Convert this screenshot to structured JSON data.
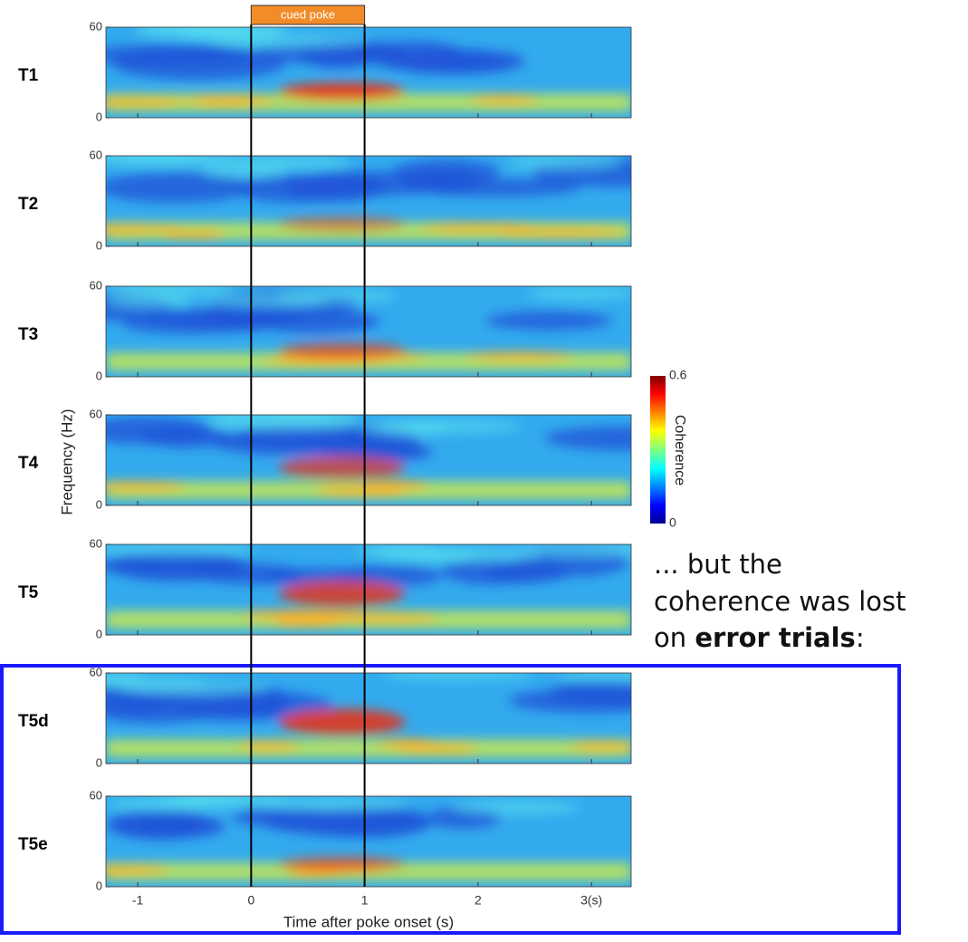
{
  "figure": {
    "panels": [
      "T1",
      "T2",
      "T3",
      "T4",
      "T5",
      "T5d",
      "T5e"
    ],
    "ylim": [
      0,
      60
    ],
    "yticks": [
      0,
      60
    ],
    "xlim": [
      -1.28,
      3.35
    ],
    "xticks": [
      -1,
      0,
      1,
      2,
      {
        "value": 3,
        "label": "3(s)"
      }
    ],
    "xlabel": "Time after poke onset (s)",
    "ylabel": "Frequency (Hz)",
    "cued_poke": {
      "label": "cued poke",
      "start": 0,
      "end": 1
    },
    "colorbar": {
      "label": "Coherence",
      "lim": [
        0,
        0.6
      ],
      "ticks": [
        0.6,
        0
      ]
    },
    "note": {
      "lines": [
        "... but the",
        "coherence was lost"
      ],
      "prefix": "on ",
      "bold": "error trials",
      "suffix": ":"
    }
  }
}
